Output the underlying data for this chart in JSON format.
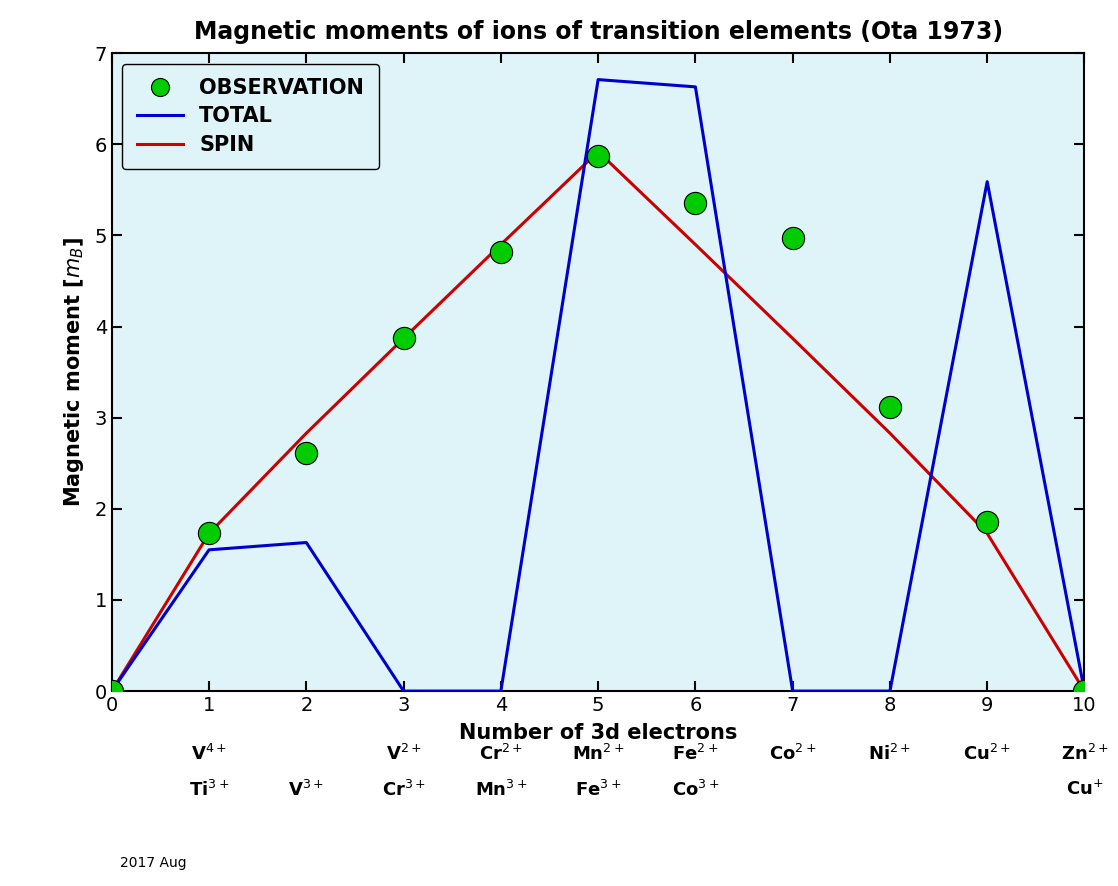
{
  "title": "Magnetic moments of ions of transition elements (Ota 1973)",
  "xlabel": "Number of 3d electrons",
  "ylabel": "Magnetic moment [$m_B$]",
  "bg_color": "#dff4f8",
  "xlim": [
    0,
    10
  ],
  "ylim": [
    0,
    7
  ],
  "xticks": [
    0,
    1,
    2,
    3,
    4,
    5,
    6,
    7,
    8,
    9,
    10
  ],
  "yticks": [
    0,
    1,
    2,
    3,
    4,
    5,
    6,
    7
  ],
  "total_segments": [
    [
      [
        0,
        1,
        2,
        3,
        4
      ],
      [
        0.0,
        1.55,
        1.63,
        0.0,
        0.0
      ]
    ],
    [
      [
        4,
        5,
        6,
        7,
        8,
        9,
        10
      ],
      [
        0.0,
        6.71,
        6.63,
        0.0,
        0.0,
        5.59,
        0.0
      ]
    ]
  ],
  "total_color": "#0000cc",
  "total_linewidth": 2.2,
  "spin_x": [
    0,
    1,
    2,
    3,
    4,
    5,
    6,
    7,
    8,
    9,
    10
  ],
  "spin_y": [
    0.0,
    1.73,
    2.83,
    3.87,
    4.9,
    5.92,
    4.9,
    3.87,
    2.83,
    1.73,
    0.0
  ],
  "spin_color": "#cc0000",
  "spin_linewidth": 2.2,
  "obs_x": [
    0,
    1,
    2,
    3,
    4,
    5,
    6,
    7,
    8,
    9,
    10
  ],
  "obs_y": [
    0.0,
    1.73,
    2.61,
    3.87,
    4.82,
    5.87,
    5.36,
    4.97,
    3.12,
    1.85,
    0.0
  ],
  "obs_color": "#00cc00",
  "obs_marker": "o",
  "obs_markersize": 16,
  "legend_obs_label": "OBSERVATION",
  "legend_total_label": "TOTAL",
  "legend_spin_label": "SPIN",
  "ion_labels_top": [
    "",
    "V$^{4+}$",
    "",
    "V$^{2+}$",
    "Cr$^{2+}$",
    "Mn$^{2+}$",
    "Fe$^{2+}$",
    "Co$^{2+}$",
    "Ni$^{2+}$",
    "Cu$^{2+}$",
    "Zn$^{2+}$"
  ],
  "ion_labels_bottom": [
    "",
    "Ti$^{3+}$",
    "V$^{3+}$",
    "Cr$^{3+}$",
    "Mn$^{3+}$",
    "Fe$^{3+}$",
    "Co$^{3+}$",
    "",
    "",
    "",
    "Cu$^{+}$"
  ],
  "footer_text": "2017 Aug",
  "title_fontsize": 17,
  "axis_label_fontsize": 15,
  "tick_fontsize": 14,
  "ion_fontsize": 13,
  "legend_fontsize": 15
}
